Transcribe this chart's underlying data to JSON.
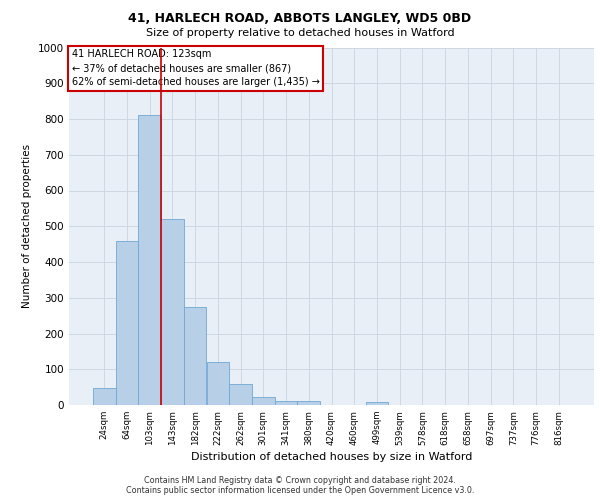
{
  "title1": "41, HARLECH ROAD, ABBOTS LANGLEY, WD5 0BD",
  "title2": "Size of property relative to detached houses in Watford",
  "xlabel": "Distribution of detached houses by size in Watford",
  "ylabel": "Number of detached properties",
  "bar_labels": [
    "24sqm",
    "64sqm",
    "103sqm",
    "143sqm",
    "182sqm",
    "222sqm",
    "262sqm",
    "301sqm",
    "341sqm",
    "380sqm",
    "420sqm",
    "460sqm",
    "499sqm",
    "539sqm",
    "578sqm",
    "618sqm",
    "658sqm",
    "697sqm",
    "737sqm",
    "776sqm",
    "816sqm"
  ],
  "bar_values": [
    47,
    460,
    810,
    520,
    275,
    120,
    60,
    22,
    10,
    10,
    0,
    0,
    8,
    0,
    0,
    0,
    0,
    0,
    0,
    0,
    0
  ],
  "bar_color": "#b8cfe8",
  "bar_edge_color": "#6fa8d4",
  "annotation_text_line1": "41 HARLECH ROAD: 123sqm",
  "annotation_text_line2": "← 37% of detached houses are smaller (867)",
  "annotation_text_line3": "62% of semi-detached houses are larger (1,435) →",
  "annotation_box_color": "#ffffff",
  "annotation_box_edge_color": "#cc0000",
  "vline_color": "#cc0000",
  "vline_x": 2.5,
  "ylim": [
    0,
    1000
  ],
  "yticks": [
    0,
    100,
    200,
    300,
    400,
    500,
    600,
    700,
    800,
    900,
    1000
  ],
  "grid_color": "#c8d4e0",
  "bg_color": "#e8eff6",
  "footnote1": "Contains HM Land Registry data © Crown copyright and database right 2024.",
  "footnote2": "Contains public sector information licensed under the Open Government Licence v3.0."
}
